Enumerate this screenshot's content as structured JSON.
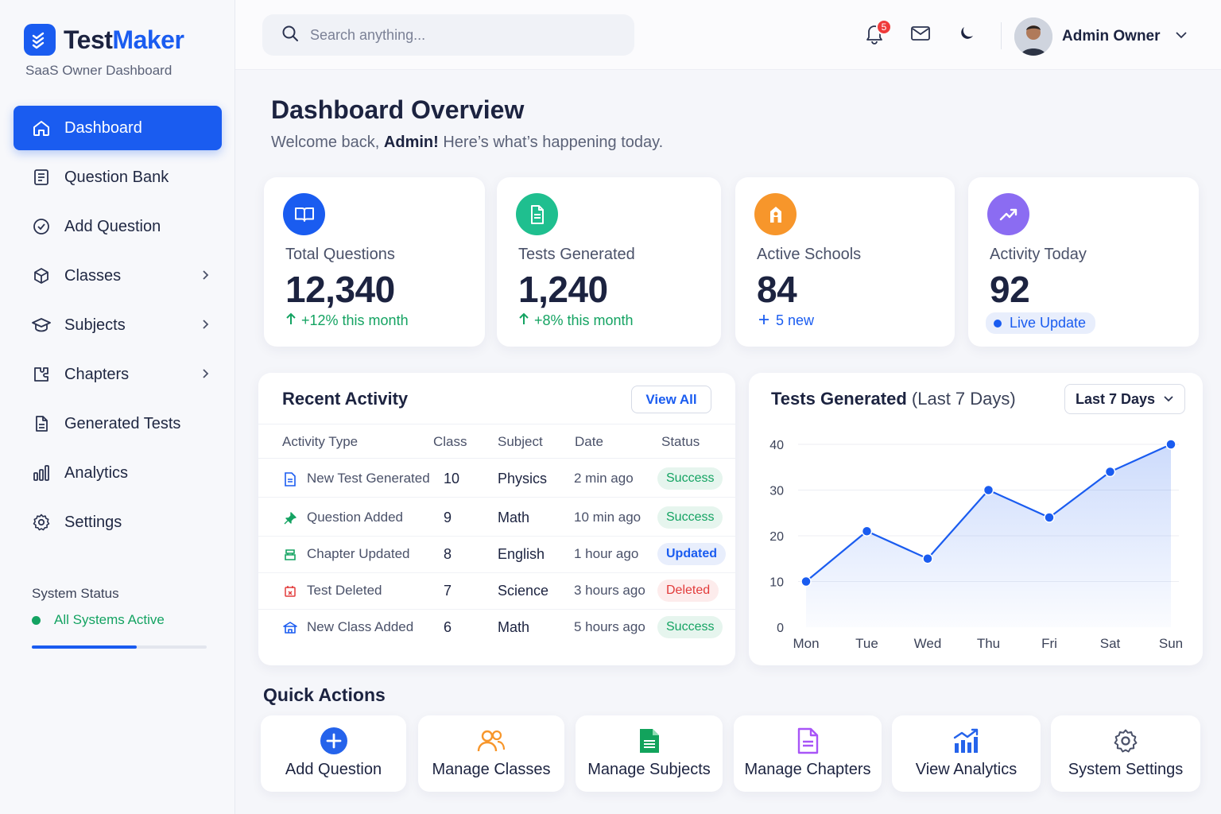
{
  "brand": {
    "name_part1": "Test",
    "name_part2": "Maker",
    "subtitle": "SaaS Owner Dashboard"
  },
  "sidebar": {
    "items": [
      {
        "label": "Dashboard",
        "icon": "home-icon",
        "active": true
      },
      {
        "label": "Question Bank",
        "icon": "document-list-icon"
      },
      {
        "label": "Add Question",
        "icon": "check-circle-icon"
      },
      {
        "label": "Classes",
        "icon": "cube-icon",
        "chevron": true
      },
      {
        "label": "Subjects",
        "icon": "graduation-cap-icon",
        "chevron": true
      },
      {
        "label": "Chapters",
        "icon": "puzzle-icon",
        "chevron": true
      },
      {
        "label": "Generated Tests",
        "icon": "file-icon"
      },
      {
        "label": "Analytics",
        "icon": "bar-chart-icon"
      },
      {
        "label": "Settings",
        "icon": "gear-icon"
      }
    ],
    "system": {
      "title": "System Status",
      "status": "All Systems Active",
      "progress": 0.6
    }
  },
  "header": {
    "search_placeholder": "Search anything...",
    "notification_count": "5",
    "user_name": "Admin Owner"
  },
  "page": {
    "title": "Dashboard Overview",
    "welcome_prefix": "Welcome back, ",
    "welcome_name": "Admin!",
    "welcome_suffix": " Here’s what’s happening today."
  },
  "stats": [
    {
      "label": "Total Questions",
      "value": "12,340",
      "foot": "+12% this month",
      "color": "#1a5cf0",
      "icon": "book-icon"
    },
    {
      "label": "Tests Generated",
      "value": "1,240",
      "foot": "+8% this month",
      "color": "#1fbf8f",
      "icon": "document-icon"
    },
    {
      "label": "Active Schools",
      "value": "84",
      "foot": "5 new",
      "color": "#f7962b",
      "icon": "school-icon"
    },
    {
      "label": "Activity Today",
      "value": "92",
      "foot": "Live Update",
      "color": "#8b6cf2",
      "icon": "trend-up-icon"
    }
  ],
  "recent": {
    "title": "Recent Activity",
    "view_all": "View All",
    "columns": [
      "Activity Type",
      "Class",
      "Subject",
      "Date",
      "Status"
    ],
    "rows": [
      {
        "type": "New Test Generated",
        "class": "10",
        "subject": "Physics",
        "date": "2 min ago",
        "status": "Success",
        "icon": "document-icon"
      },
      {
        "type": "Question Added",
        "class": "9",
        "subject": "Math",
        "date": "10 min ago",
        "status": "Success",
        "icon": "pin-icon"
      },
      {
        "type": "Chapter Updated",
        "class": "8",
        "subject": "English",
        "date": "1 hour ago",
        "status": "Updated",
        "icon": "chapter-icon"
      },
      {
        "type": "Test Deleted",
        "class": "7",
        "subject": "Science",
        "date": "3 hours ago",
        "status": "Deleted",
        "icon": "calendar-x-icon"
      },
      {
        "type": "New Class Added",
        "class": "6",
        "subject": "Math",
        "date": "5 hours ago",
        "status": "Success",
        "icon": "class-icon"
      }
    ]
  },
  "chart_panel": {
    "title_bold": "Tests Generated",
    "title_rest": "(Last 7 Days)",
    "range_select": "Last 7 Days"
  },
  "chart_data": {
    "type": "line",
    "categories": [
      "Mon",
      "Tue",
      "Wed",
      "Thu",
      "Fri",
      "Sat",
      "Sun"
    ],
    "values": [
      10,
      21,
      15,
      30,
      24,
      34,
      40
    ],
    "ylim": [
      0,
      40
    ],
    "yticks": [
      0,
      10,
      20,
      30,
      40
    ],
    "grid": true,
    "color": "#1a5cf0"
  },
  "quick_actions": {
    "title": "Quick Actions",
    "items": [
      {
        "label": "Add Question",
        "icon": "plus-circle-icon"
      },
      {
        "label": "Manage Classes",
        "icon": "users-icon"
      },
      {
        "label": "Manage Subjects",
        "icon": "sheet-icon"
      },
      {
        "label": "Manage Chapters",
        "icon": "file-text-icon"
      },
      {
        "label": "View Analytics",
        "icon": "analytics-icon"
      },
      {
        "label": "System Settings",
        "icon": "gear-icon"
      }
    ]
  }
}
